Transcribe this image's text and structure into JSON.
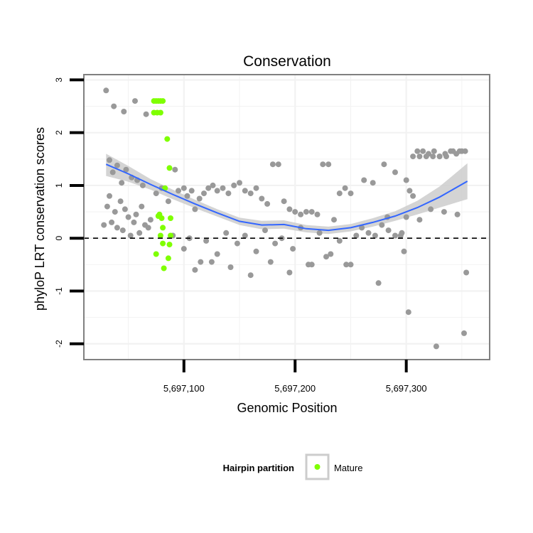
{
  "chart_data": {
    "type": "scatter",
    "title": "Conservation",
    "xlabel": "Genomic Position",
    "ylabel": "phyloP LRT conservation scores",
    "xlim": [
      5697010,
      5697375
    ],
    "ylim": [
      -2.3,
      3.1
    ],
    "x_ticks": [
      {
        "value": 5697100,
        "label": "5,697,100"
      },
      {
        "value": 5697200,
        "label": "5,697,200"
      },
      {
        "value": 5697300,
        "label": "5,697,300"
      }
    ],
    "y_ticks": [
      {
        "value": 3,
        "label": "3"
      },
      {
        "value": 2,
        "label": "2"
      },
      {
        "value": 1,
        "label": "1"
      },
      {
        "value": 0,
        "label": "0"
      },
      {
        "value": -1,
        "label": "-1"
      },
      {
        "value": -2,
        "label": "-2"
      }
    ],
    "grid": true,
    "reference_line": {
      "y": 0,
      "style": "dashed"
    },
    "colors": {
      "other": "#999999",
      "mature": "#7fff00",
      "smooth": "#3366ff",
      "ribbon": "#cccccc",
      "panel_border": "#808080",
      "grid": "#f2f2f2"
    },
    "legend": {
      "title": "Hairpin partition",
      "position": "bottom",
      "entries": [
        {
          "label": "Mature",
          "color": "#7fff00"
        }
      ]
    },
    "smooth": {
      "x": [
        5697030,
        5697050,
        5697070,
        5697090,
        5697110,
        5697130,
        5697150,
        5697170,
        5697190,
        5697210,
        5697230,
        5697250,
        5697270,
        5697290,
        5697310,
        5697330,
        5697355
      ],
      "y": [
        1.4,
        1.22,
        1.02,
        0.83,
        0.65,
        0.48,
        0.32,
        0.25,
        0.26,
        0.18,
        0.15,
        0.2,
        0.3,
        0.42,
        0.58,
        0.78,
        1.08
      ],
      "lower": [
        1.18,
        1.07,
        0.92,
        0.74,
        0.57,
        0.41,
        0.25,
        0.17,
        0.18,
        0.11,
        0.08,
        0.13,
        0.22,
        0.33,
        0.45,
        0.58,
        0.74
      ],
      "upper": [
        1.6,
        1.37,
        1.12,
        0.92,
        0.73,
        0.55,
        0.39,
        0.33,
        0.34,
        0.25,
        0.22,
        0.27,
        0.38,
        0.51,
        0.71,
        0.98,
        1.42
      ]
    },
    "series": [
      {
        "group": "Other",
        "x": [
          5697028,
          5697031,
          5697033,
          5697035,
          5697038,
          5697040,
          5697043,
          5697045,
          5697047,
          5697050,
          5697052,
          5697055,
          5697057,
          5697060,
          5697062,
          5697065,
          5697068,
          5697070,
          5697033,
          5697036,
          5697040,
          5697044,
          5697048,
          5697053,
          5697058,
          5697063,
          5697030,
          5697037,
          5697046,
          5697056,
          5697066,
          5697075,
          5697080,
          5697086,
          5697092,
          5697095,
          5697100,
          5697103,
          5697107,
          5697110,
          5697114,
          5697118,
          5697122,
          5697126,
          5697130,
          5697135,
          5697140,
          5697145,
          5697150,
          5697155,
          5697160,
          5697165,
          5697170,
          5697175,
          5697180,
          5697185,
          5697190,
          5697195,
          5697200,
          5697205,
          5697210,
          5697215,
          5697220,
          5697225,
          5697230,
          5697235,
          5697240,
          5697245,
          5697250,
          5697090,
          5697105,
          5697120,
          5697138,
          5697155,
          5697173,
          5697188,
          5697205,
          5697222,
          5697240,
          5697100,
          5697115,
          5697130,
          5697148,
          5697165,
          5697182,
          5697198,
          5697215,
          5697232,
          5697250,
          5697110,
          5697125,
          5697142,
          5697160,
          5697178,
          5697195,
          5697212,
          5697228,
          5697246,
          5697255,
          5697260,
          5697266,
          5697272,
          5697278,
          5697284,
          5697290,
          5697296,
          5697298,
          5697300,
          5697303,
          5697306,
          5697310,
          5697315,
          5697320,
          5697325,
          5697330,
          5697335,
          5697340,
          5697345,
          5697350,
          5697353,
          5697306,
          5697312,
          5697318,
          5697324,
          5697330,
          5697336,
          5697342,
          5697348,
          5697262,
          5697270,
          5697280,
          5697290,
          5697300,
          5697312,
          5697322,
          5697334,
          5697346,
          5697302,
          5697327,
          5697352,
          5697354,
          5697275,
          5697283,
          5697295
        ],
        "y": [
          0.25,
          0.6,
          0.8,
          0.3,
          0.5,
          0.2,
          0.7,
          0.15,
          0.55,
          0.4,
          0.05,
          0.3,
          0.45,
          0.1,
          0.6,
          0.25,
          0.2,
          0.35,
          1.48,
          1.25,
          1.38,
          1.05,
          1.3,
          1.15,
          1.1,
          1.0,
          2.8,
          2.5,
          2.4,
          2.6,
          2.35,
          0.85,
          0.95,
          0.7,
          1.3,
          0.9,
          0.95,
          0.8,
          0.9,
          0.55,
          0.75,
          0.85,
          0.95,
          1.0,
          0.9,
          0.95,
          0.85,
          1.0,
          1.05,
          0.9,
          0.85,
          0.95,
          0.75,
          0.65,
          1.4,
          1.4,
          0.7,
          0.55,
          0.5,
          0.45,
          0.5,
          0.5,
          0.45,
          1.4,
          1.4,
          0.35,
          0.85,
          0.95,
          0.85,
          0.05,
          0.0,
          -0.05,
          0.1,
          0.05,
          0.15,
          0.0,
          0.2,
          0.1,
          -0.05,
          -0.2,
          -0.45,
          -0.3,
          -0.1,
          -0.25,
          -0.1,
          -0.2,
          -0.5,
          -0.3,
          -0.5,
          -0.6,
          -0.45,
          -0.55,
          -0.7,
          -0.45,
          -0.65,
          -0.5,
          -0.35,
          -0.5,
          0.05,
          0.2,
          0.1,
          0.05,
          0.25,
          0.15,
          0.05,
          0.1,
          -0.25,
          0.4,
          0.9,
          0.8,
          1.65,
          1.65,
          1.6,
          1.65,
          1.55,
          1.6,
          1.65,
          1.6,
          1.65,
          1.65,
          1.55,
          1.55,
          1.55,
          1.55,
          1.55,
          1.55,
          1.65,
          1.65,
          1.1,
          1.05,
          1.4,
          1.25,
          1.1,
          0.35,
          0.55,
          0.5,
          0.45,
          -1.4,
          -2.05,
          -1.8,
          -0.65,
          -0.85,
          0.4,
          0.05
        ],
        "color": "#999999"
      },
      {
        "group": "Mature",
        "x": [
          5697073,
          5697075,
          5697077,
          5697079,
          5697081,
          5697073,
          5697076,
          5697079,
          5697085,
          5697087,
          5697083,
          5697078,
          5697080,
          5697081,
          5697088,
          5697088,
          5697086,
          5697075,
          5697082,
          5697081,
          5697087,
          5697079,
          5697077
        ],
        "y": [
          2.6,
          2.6,
          2.6,
          2.6,
          2.6,
          2.38,
          2.38,
          2.38,
          1.88,
          1.33,
          0.95,
          0.45,
          0.38,
          0.2,
          0.38,
          0.05,
          -0.38,
          -0.3,
          -0.57,
          -0.1,
          -0.12,
          0.05,
          0.42
        ],
        "color": "#7fff00"
      }
    ]
  }
}
